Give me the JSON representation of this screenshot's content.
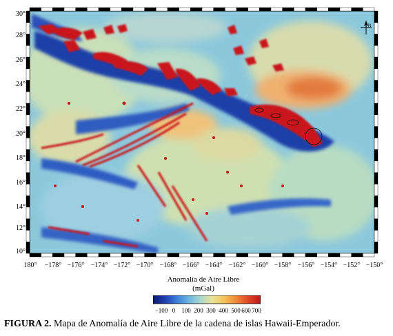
{
  "map": {
    "lat_labels": [
      "30°",
      "28°",
      "26°",
      "24°",
      "22°",
      "20°",
      "18°",
      "16°",
      "14°",
      "12°",
      "10°"
    ],
    "lon_labels": [
      "180°",
      "−178°",
      "−176°",
      "−174°",
      "−172°",
      "−170°",
      "−168°",
      "−166°",
      "−164°",
      "−162°",
      "−160°",
      "−158°",
      "−156°",
      "−154°",
      "−152°",
      "−150°"
    ],
    "lon_range": [
      -180,
      -150
    ],
    "lat_range": [
      10,
      31
    ],
    "north_arrow_label": "N",
    "colormap_colors": [
      "#0a1a6e",
      "#1e3fb0",
      "#3a7fd6",
      "#6ab4e0",
      "#a9d8cf",
      "#e8e29a",
      "#f6c25a",
      "#ef8a3a",
      "#de4a26",
      "#c0141a"
    ]
  },
  "colorbar": {
    "title_line1": "Anomalía de Aire Libre",
    "title_line2": "(mGal)",
    "ticks": [
      "−100",
      "0",
      "100",
      "200",
      "300",
      "400",
      "500",
      "600",
      "700"
    ],
    "range": [
      -100,
      700
    ]
  },
  "caption": {
    "label": "FIGURA 2.",
    "text": " Mapa de Anomalía de Aire Libre de la cadena de islas Hawaii-Emperador."
  }
}
